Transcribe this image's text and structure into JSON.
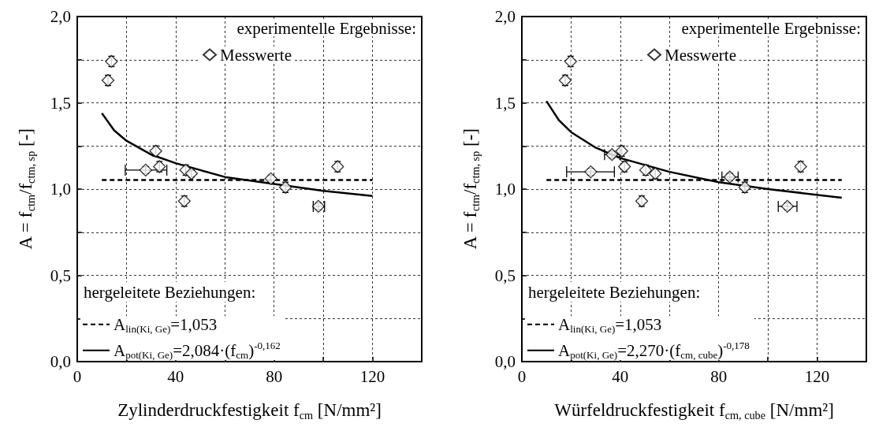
{
  "chart_data": [
    {
      "type": "scatter",
      "xlabel": "Zylinderdruckfestigkeit f$_{cm}$ [N/mm²]",
      "ylabel": "A = f$_{ctm}$/f$_{ctm, sp}$ [-]",
      "legend_title": "experimentelle Ergebnisse:",
      "annotations": [
        "hergeleitete Beziehungen:"
      ],
      "legend": "left",
      "grid": true,
      "xlim": [
        0,
        140
      ],
      "xticks": [
        0,
        {
          "value": 20,
          "label": null
        },
        40,
        {
          "value": 60,
          "label": null
        },
        80,
        {
          "value": 100,
          "label": null
        },
        120,
        {
          "value": 140,
          "label": null
        }
      ],
      "ylim": [
        0,
        2
      ],
      "yticks": [
        {
          "value": 0,
          "label": "0,0"
        },
        {
          "value": 0.25,
          "label": null
        },
        {
          "value": 0.5,
          "label": "0,5"
        },
        {
          "value": 0.75,
          "label": null
        },
        {
          "value": 1,
          "label": "1,0"
        },
        {
          "value": 1.25,
          "label": null
        },
        {
          "value": 1.5,
          "label": "1,5"
        },
        {
          "value": 1.75,
          "label": null
        },
        {
          "value": 2,
          "label": "2,0"
        }
      ],
      "series": [
        {
          "name": "Messwerte",
          "type": "scatter",
          "marker": "diamond",
          "color": "#000000",
          "x": [
            13.9,
            12.5,
            31.9,
            27.8,
            33.4,
            44.1,
            46.4,
            43.5,
            78.7,
            84.6,
            98.0,
            105.8
          ],
          "values": [
            1.74,
            1.63,
            1.22,
            1.11,
            1.13,
            1.11,
            1.09,
            0.93,
            1.06,
            1.01,
            0.9,
            1.13
          ],
          "errors": [
            0.03,
            0.03,
            0.03,
            0.02,
            0.03,
            0.03,
            0.02,
            0.03,
            0.02,
            0.03,
            0.02,
            0.03
          ],
          "xerrors": [
            null,
            null,
            null,
            [
              19.5,
              36.4
            ],
            null,
            null,
            null,
            null,
            null,
            null,
            [
              95.9,
              100.5
            ],
            null
          ]
        },
        {
          "name": "A$_{lin(Ki, Ge)}$=1,053",
          "type": "line",
          "marker": "none",
          "line_style": "dashed",
          "color": "#000000",
          "x": [
            10,
            120
          ],
          "values": [
            1.053,
            1.053
          ]
        },
        {
          "name": "A$_{pot(Ki, Ge)}$=2,084·(f$_{cm}$)$^{-0,162}$",
          "type": "line",
          "marker": "none",
          "line_style": "solid",
          "color": "#000000",
          "x": [
            10,
            15,
            20,
            30,
            40,
            50,
            60,
            80,
            100,
            120
          ],
          "values": [
            1.44,
            1.34,
            1.28,
            1.2,
            1.15,
            1.11,
            1.07,
            1.03,
            0.99,
            0.96
          ]
        }
      ]
    },
    {
      "type": "scatter",
      "xlabel": "Würfeldruckfestigkeit f$_{cm, cube}$ [N/mm²]",
      "ylabel": "A = f$_{ctm}$/f$_{ctm, sp}$ [-]",
      "legend_title": "experimentelle Ergebnisse:",
      "annotations": [
        "hergeleitete Beziehungen:"
      ],
      "legend": "left",
      "grid": true,
      "xlim": [
        0,
        140
      ],
      "xticks": [
        0,
        {
          "value": 20,
          "label": null
        },
        40,
        {
          "value": 60,
          "label": null
        },
        80,
        {
          "value": 100,
          "label": null
        },
        120,
        {
          "value": 140,
          "label": null
        }
      ],
      "ylim": [
        0,
        2
      ],
      "yticks": [
        {
          "value": 0,
          "label": "0,0"
        },
        {
          "value": 0.25,
          "label": null
        },
        {
          "value": 0.5,
          "label": "0,5"
        },
        {
          "value": 0.75,
          "label": null
        },
        {
          "value": 1,
          "label": "1,0"
        },
        {
          "value": 1.25,
          "label": null
        },
        {
          "value": 1.5,
          "label": "1,5"
        },
        {
          "value": 1.75,
          "label": null
        },
        {
          "value": 2,
          "label": "2,0"
        }
      ],
      "series": [
        {
          "name": "Messwerte",
          "type": "scatter",
          "marker": "diamond",
          "color": "#000000",
          "x": [
            19.8,
            17.6,
            36.6,
            40.6,
            28.0,
            41.7,
            50.3,
            54.2,
            48.7,
            84.5,
            90.6,
            107.9,
            113.3
          ],
          "values": [
            1.74,
            1.63,
            1.2,
            1.22,
            1.1,
            1.13,
            1.11,
            1.09,
            0.93,
            1.07,
            1.01,
            0.9,
            1.13
          ],
          "errors": [
            0.03,
            0.03,
            0.02,
            0.03,
            0.02,
            0.03,
            0.03,
            0.03,
            0.03,
            0.02,
            0.03,
            0.02,
            0.03
          ],
          "xerrors": [
            null,
            null,
            [
              33.6,
              39.8
            ],
            null,
            [
              18.2,
              37.6
            ],
            null,
            null,
            null,
            null,
            [
              81.3,
              87.9
            ],
            null,
            [
              104.2,
              111.8
            ],
            null
          ]
        },
        {
          "name": "A$_{lin(Ki, Ge)}$=1,053",
          "type": "line",
          "marker": "none",
          "line_style": "dashed",
          "color": "#000000",
          "x": [
            10,
            130
          ],
          "values": [
            1.053,
            1.053
          ]
        },
        {
          "name": "A$_{pot(Ki, Ge)}$=2,270·(f$_{cm, cube}$)$^{-0,178}$",
          "type": "line",
          "marker": "none",
          "line_style": "solid",
          "color": "#000000",
          "x": [
            10,
            15,
            20,
            30,
            40,
            60,
            80,
            100,
            130
          ],
          "values": [
            1.51,
            1.4,
            1.33,
            1.24,
            1.18,
            1.1,
            1.04,
            1.0,
            0.95
          ]
        }
      ]
    }
  ]
}
